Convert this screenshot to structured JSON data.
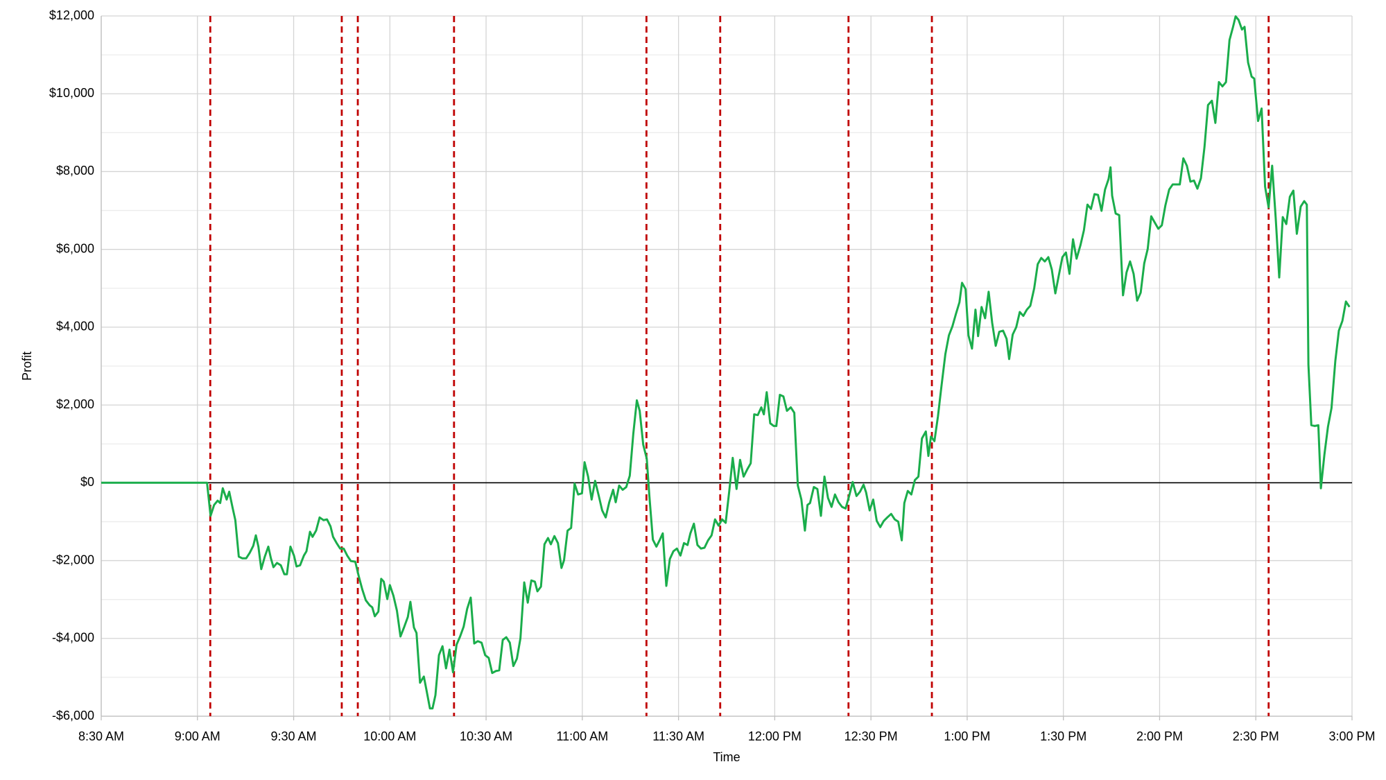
{
  "chart_data": {
    "type": "line",
    "x_label": "Time",
    "y_label": "Profit",
    "color": "#1aad4b",
    "grid": true,
    "zero_line": true,
    "xlim": [
      0,
      390
    ],
    "xticks": [
      {
        "value": 0,
        "label": "8:30 AM"
      },
      {
        "value": 30,
        "label": "9:00 AM"
      },
      {
        "value": 60,
        "label": "9:30 AM"
      },
      {
        "value": 90,
        "label": "10:00 AM"
      },
      {
        "value": 120,
        "label": "10:30 AM"
      },
      {
        "value": 150,
        "label": "11:00 AM"
      },
      {
        "value": 180,
        "label": "11:30 AM"
      },
      {
        "value": 210,
        "label": "12:00 PM"
      },
      {
        "value": 240,
        "label": "12:30 PM"
      },
      {
        "value": 270,
        "label": "1:00 PM"
      },
      {
        "value": 300,
        "label": "1:30 PM"
      },
      {
        "value": 330,
        "label": "2:00 PM"
      },
      {
        "value": 360,
        "label": "2:30 PM"
      },
      {
        "value": 390,
        "label": "3:00 PM"
      }
    ],
    "ylim": [
      -6000,
      12000
    ],
    "yticks": [
      {
        "value": -6000,
        "label": "-$6,000"
      },
      {
        "value": -4000,
        "label": "-$4,000"
      },
      {
        "value": -2000,
        "label": "-$2,000"
      },
      {
        "value": 0,
        "label": "$0"
      },
      {
        "value": 2000,
        "label": "$2,000"
      },
      {
        "value": 4000,
        "label": "$4,000"
      },
      {
        "value": 6000,
        "label": "$6,000"
      },
      {
        "value": 8000,
        "label": "$8,000"
      },
      {
        "value": 10000,
        "label": "$10,000"
      },
      {
        "value": 12000,
        "label": "$12,000"
      }
    ],
    "y_minor_grid": [
      -5000,
      -3000,
      -1000,
      1000,
      3000,
      5000,
      7000,
      9000,
      11000
    ],
    "vlines": {
      "color": "#c00000",
      "dashed": true,
      "x": [
        34,
        75,
        80,
        110,
        170,
        193,
        233,
        259,
        364
      ]
    },
    "x": [
      0,
      33.0,
      34.1,
      35.2,
      36.3,
      37.1,
      37.9,
      39.1,
      39.9,
      41.0,
      41.8,
      42.9,
      44.0,
      45.2,
      46.3,
      47.4,
      48.2,
      49.0,
      49.9,
      51.0,
      52.1,
      52.9,
      53.7,
      54.8,
      56.0,
      57.1,
      57.9,
      59.0,
      60.1,
      60.9,
      62.0,
      63.2,
      64.0,
      65.1,
      65.9,
      67.0,
      68.1,
      69.3,
      70.4,
      71.5,
      72.3,
      73.4,
      74.5,
      75.6,
      76.7,
      77.8,
      79.2,
      80.3,
      81.4,
      82.5,
      83.7,
      84.5,
      85.3,
      86.4,
      87.3,
      88.1,
      89.2,
      90.0,
      91.1,
      92.2,
      93.3,
      94.5,
      95.6,
      96.4,
      97.5,
      98.3,
      99.4,
      100.6,
      101.4,
      102.5,
      103.3,
      104.2,
      105.3,
      106.4,
      107.5,
      108.6,
      109.7,
      110.8,
      111.9,
      113.0,
      114.1,
      115.2,
      116.3,
      117.4,
      118.6,
      119.7,
      120.8,
      121.9,
      123.0,
      124.1,
      125.2,
      126.3,
      127.4,
      128.5,
      129.6,
      130.7,
      131.9,
      133.0,
      134.1,
      135.2,
      136.0,
      137.1,
      138.2,
      139.3,
      140.2,
      141.3,
      142.4,
      143.5,
      144.3,
      145.4,
      146.5,
      147.6,
      148.7,
      149.9,
      150.7,
      151.8,
      152.9,
      154.0,
      155.1,
      156.2,
      157.3,
      158.4,
      159.6,
      160.4,
      161.5,
      162.6,
      163.7,
      164.8,
      165.9,
      167.0,
      167.9,
      169.0,
      170.1,
      170.9,
      172.0,
      173.1,
      174.2,
      175.1,
      176.2,
      177.3,
      178.4,
      179.5,
      180.6,
      181.7,
      182.8,
      183.7,
      184.8,
      185.9,
      187.0,
      188.1,
      189.2,
      190.3,
      191.4,
      192.5,
      193.6,
      194.7,
      195.8,
      196.9,
      198.1,
      199.2,
      200.3,
      201.4,
      202.5,
      203.6,
      204.7,
      205.8,
      206.6,
      207.5,
      208.6,
      209.7,
      210.5,
      211.6,
      212.7,
      213.8,
      215.0,
      216.1,
      217.2,
      218.3,
      219.4,
      220.2,
      221.0,
      222.2,
      223.3,
      224.4,
      225.5,
      226.6,
      227.7,
      228.8,
      229.9,
      231.0,
      232.1,
      233.2,
      234.3,
      235.5,
      236.6,
      237.7,
      238.5,
      239.6,
      240.7,
      241.8,
      242.9,
      244.0,
      245.1,
      246.3,
      247.4,
      248.5,
      249.6,
      250.4,
      251.5,
      252.6,
      253.7,
      254.8,
      255.9,
      257.1,
      257.9,
      258.7,
      259.8,
      260.9,
      262.0,
      263.2,
      264.3,
      265.4,
      266.5,
      267.6,
      268.4,
      269.5,
      270.4,
      271.5,
      272.6,
      273.4,
      274.5,
      275.6,
      276.7,
      277.8,
      278.9,
      280.0,
      281.2,
      282.3,
      283.1,
      284.2,
      285.3,
      286.4,
      287.5,
      288.6,
      289.7,
      290.9,
      292.0,
      293.1,
      294.2,
      295.3,
      296.4,
      297.5,
      298.6,
      299.7,
      300.8,
      301.9,
      303.0,
      304.1,
      305.3,
      306.4,
      307.5,
      308.6,
      309.7,
      310.8,
      311.9,
      313.0,
      314.1,
      314.7,
      315.2,
      316.3,
      317.4,
      318.6,
      319.7,
      320.8,
      321.9,
      323.0,
      324.1,
      325.2,
      326.3,
      327.4,
      328.5,
      329.6,
      330.7,
      331.8,
      333.0,
      334.1,
      335.2,
      336.3,
      337.4,
      338.5,
      339.6,
      340.7,
      341.8,
      342.9,
      344.0,
      345.1,
      346.3,
      347.4,
      348.5,
      349.6,
      350.7,
      351.8,
      352.9,
      353.7,
      354.6,
      355.7,
      356.5,
      357.6,
      358.7,
      359.5,
      360.7,
      361.8,
      362.9,
      364.0,
      365.1,
      366.2,
      367.3,
      368.4,
      369.5,
      370.6,
      371.7,
      372.8,
      374.0,
      375.1,
      375.9,
      376.4,
      377.3,
      378.4,
      379.5,
      380.3,
      381.4,
      382.5,
      383.6,
      384.8,
      385.9,
      387.0,
      388.1,
      389.2
    ],
    "values": [
      0,
      0,
      -850,
      -570,
      -460,
      -520,
      -140,
      -430,
      -230,
      -660,
      -960,
      -1900,
      -1940,
      -1940,
      -1800,
      -1620,
      -1350,
      -1640,
      -2220,
      -1900,
      -1640,
      -1940,
      -2170,
      -2060,
      -2120,
      -2350,
      -2350,
      -1640,
      -1870,
      -2150,
      -2120,
      -1870,
      -1760,
      -1260,
      -1390,
      -1230,
      -890,
      -960,
      -940,
      -1120,
      -1390,
      -1550,
      -1690,
      -1690,
      -1870,
      -2010,
      -2030,
      -2400,
      -2740,
      -3020,
      -3150,
      -3200,
      -3430,
      -3310,
      -2470,
      -2540,
      -2990,
      -2630,
      -2900,
      -3290,
      -3950,
      -3700,
      -3450,
      -3060,
      -3720,
      -3860,
      -5140,
      -4980,
      -5320,
      -5800,
      -5800,
      -5460,
      -4430,
      -4200,
      -4770,
      -4290,
      -4870,
      -4160,
      -3950,
      -3700,
      -3240,
      -2950,
      -4130,
      -4070,
      -4110,
      -4430,
      -4500,
      -4890,
      -4840,
      -4820,
      -4040,
      -3970,
      -4110,
      -4710,
      -4520,
      -4000,
      -2560,
      -3080,
      -2510,
      -2540,
      -2790,
      -2670,
      -1580,
      -1420,
      -1580,
      -1370,
      -1550,
      -2190,
      -1990,
      -1230,
      -1160,
      -20,
      -300,
      -270,
      530,
      160,
      -430,
      50,
      -320,
      -710,
      -890,
      -500,
      -180,
      -500,
      -70,
      -180,
      -110,
      180,
      1260,
      2120,
      1850,
      980,
      620,
      -320,
      -1460,
      -1640,
      -1460,
      -1300,
      -2650,
      -1960,
      -1760,
      -1690,
      -1870,
      -1550,
      -1600,
      -1300,
      -1050,
      -1600,
      -1690,
      -1670,
      -1480,
      -1350,
      -940,
      -1100,
      -940,
      -1030,
      -230,
      640,
      -160,
      590,
      160,
      340,
      500,
      1760,
      1740,
      1940,
      1760,
      2330,
      1530,
      1460,
      1460,
      2260,
      2220,
      1850,
      1940,
      1800,
      -70,
      -430,
      -1230,
      -570,
      -520,
      -110,
      -160,
      -850,
      160,
      -390,
      -620,
      -300,
      -500,
      -620,
      -660,
      -340,
      20,
      -340,
      -230,
      -50,
      -250,
      -710,
      -430,
      -980,
      -1140,
      -980,
      -890,
      -800,
      -940,
      -1000,
      -1480,
      -520,
      -210,
      -300,
      70,
      160,
      1140,
      1320,
      690,
      1190,
      1070,
      1710,
      2490,
      3310,
      3790,
      4020,
      4340,
      4640,
      5140,
      4980,
      3790,
      3450,
      4450,
      3770,
      4520,
      4230,
      4910,
      4110,
      3520,
      3880,
      3910,
      3700,
      3180,
      3810,
      4000,
      4390,
      4290,
      4450,
      4550,
      5000,
      5620,
      5780,
      5690,
      5800,
      5480,
      4870,
      5340,
      5800,
      5920,
      5370,
      6260,
      5760,
      6100,
      6490,
      7150,
      7040,
      7420,
      7400,
      6990,
      7540,
      7810,
      8110,
      7380,
      6920,
      6880,
      4820,
      5410,
      5690,
      5370,
      4680,
      4890,
      5640,
      6010,
      6850,
      6690,
      6530,
      6620,
      7130,
      7540,
      7670,
      7670,
      7670,
      8340,
      8150,
      7740,
      7770,
      7560,
      7830,
      8630,
      9710,
      9820,
      9250,
      10300,
      10190,
      10300,
      11380,
      11720,
      11990,
      11900,
      11650,
      11720,
      10800,
      10440,
      10390,
      9300,
      9620,
      7610,
      7080,
      8150,
      6810,
      5280,
      6830,
      6650,
      7350,
      7510,
      6400,
      7100,
      7240,
      7150,
      3040,
      1480,
      1460,
      1480,
      -140,
      730,
      1440,
      1920,
      3130,
      3910,
      4160,
      4660,
      4520
    ]
  }
}
